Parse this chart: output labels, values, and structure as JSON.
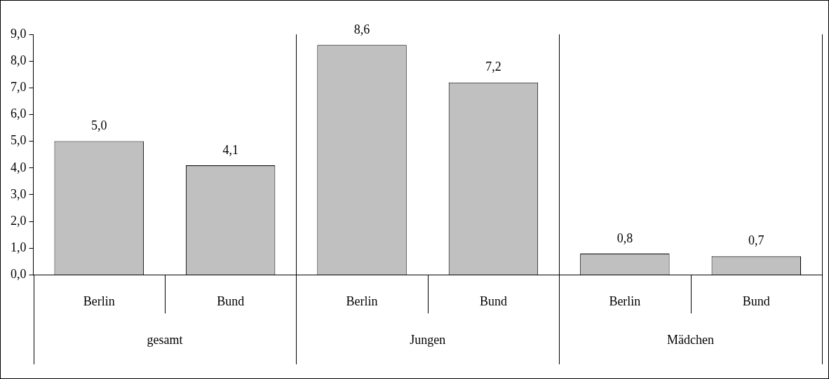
{
  "chart_data": {
    "type": "bar",
    "categories": [
      "Berlin",
      "Bund",
      "Berlin",
      "Bund",
      "Berlin",
      "Bund"
    ],
    "values": [
      5.0,
      4.1,
      8.6,
      7.2,
      0.8,
      0.7
    ],
    "value_labels": [
      "5,0",
      "4,1",
      "8,6",
      "7,2",
      "0,8",
      "0,7"
    ],
    "color": "#c0c0c0",
    "ylim": [
      0,
      9
    ],
    "yticks": [
      {
        "value": 0,
        "label": "0,0"
      },
      {
        "value": 1,
        "label": "1,0"
      },
      {
        "value": 2,
        "label": "2,0"
      },
      {
        "value": 3,
        "label": "3,0"
      },
      {
        "value": 4,
        "label": "4,0"
      },
      {
        "value": 5,
        "label": "5,0"
      },
      {
        "value": 6,
        "label": "6,0"
      },
      {
        "value": 7,
        "label": "7,0"
      },
      {
        "value": 8,
        "label": "8,0"
      },
      {
        "value": 9,
        "label": "9,0"
      }
    ],
    "annotations": [
      "gesamt",
      "Jungen",
      "Mädchen"
    ],
    "grid": false,
    "legend": false
  }
}
